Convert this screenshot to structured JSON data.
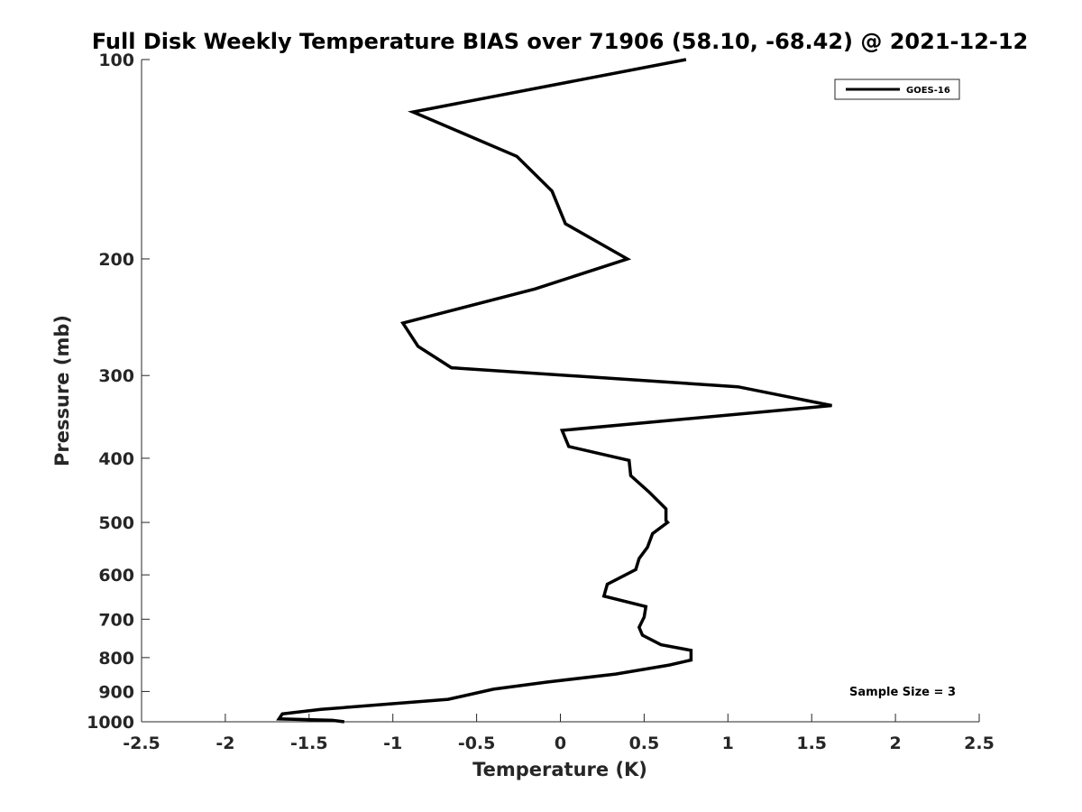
{
  "chart_data": {
    "type": "line",
    "title": "Full Disk Weekly Temperature BIAS over 71906 (58.10, -68.42) @ 2021-12-12",
    "xlabel": "Temperature (K)",
    "ylabel": "Pressure (mb)",
    "xlim": [
      -2.5,
      2.5
    ],
    "ylim": [
      100,
      1000
    ],
    "y_scale": "log",
    "y_reversed": true,
    "xticks": [
      -2.5,
      -2,
      -1.5,
      -1,
      -0.5,
      0,
      0.5,
      1,
      1.5,
      2,
      2.5
    ],
    "xtick_labels": [
      "-2.5",
      "-2",
      "-1.5",
      "-1",
      "-0.5",
      "0",
      "0.5",
      "1",
      "1.5",
      "2",
      "2.5"
    ],
    "yticks": [
      100,
      200,
      300,
      400,
      500,
      600,
      700,
      800,
      900,
      1000
    ],
    "ytick_labels": [
      "100",
      "200",
      "300",
      "400",
      "500",
      "600",
      "700",
      "800",
      "900",
      "1000"
    ],
    "grid": false,
    "legend_position": "top-right",
    "annotation": "Sample Size = 3",
    "line_color": "#000000",
    "series": [
      {
        "name": "GOES-16",
        "x": [
          0.75,
          -0.88,
          -0.26,
          -0.05,
          0.03,
          0.4,
          -0.15,
          -0.94,
          -0.85,
          -0.65,
          1.06,
          1.62,
          0.01,
          0.05,
          0.41,
          0.42,
          0.53,
          0.63,
          0.63,
          0.64,
          0.55,
          0.52,
          0.47,
          0.45,
          0.28,
          0.26,
          0.51,
          0.5,
          0.47,
          0.49,
          0.6,
          0.78,
          0.78,
          0.65,
          0.33,
          -0.08,
          -0.4,
          -0.67,
          -1.43,
          -1.66,
          -1.68,
          -1.36,
          -1.29
        ],
        "y": [
          100,
          120,
          140,
          158,
          177,
          200,
          222,
          250,
          271,
          292,
          312,
          333,
          363,
          384,
          403,
          425,
          450,
          477,
          497,
          500,
          520,
          545,
          567,
          589,
          620,
          646,
          670,
          695,
          720,
          740,
          765,
          780,
          807,
          821,
          847,
          871,
          893,
          925,
          958,
          973,
          990,
          995,
          1000
        ]
      }
    ]
  }
}
